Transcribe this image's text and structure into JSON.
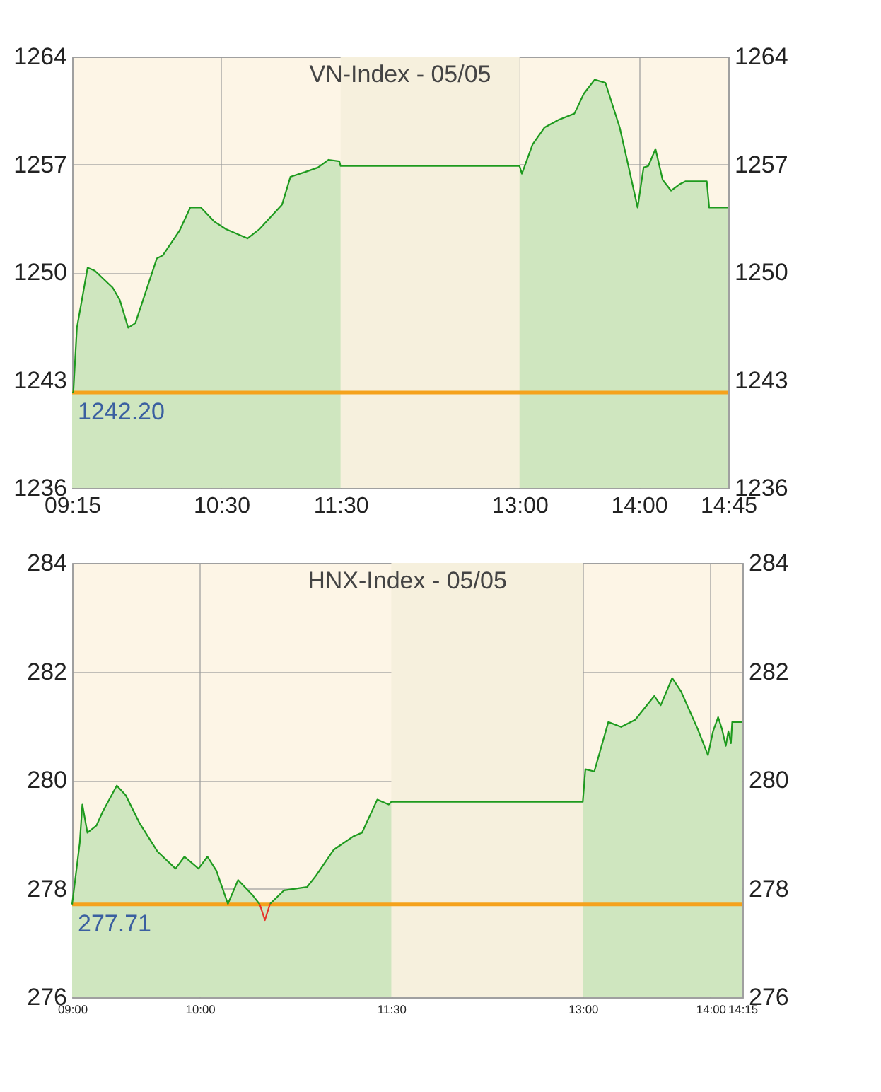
{
  "chart_data": [
    {
      "type": "area",
      "title": "VN-Index - 05/05",
      "xlim": [
        9.25,
        14.75
      ],
      "xticks": [
        {
          "value": 9.25,
          "label": "09:15"
        },
        {
          "value": 10.5,
          "label": "10:30"
        },
        {
          "value": 11.5,
          "label": "11:30"
        },
        {
          "value": 13,
          "label": "13:00"
        },
        {
          "value": 14,
          "label": "14:00"
        },
        {
          "value": 14.75,
          "label": "14:45"
        }
      ],
      "ylim": [
        1236,
        1264
      ],
      "yticks": [
        1236,
        1243,
        1250,
        1257,
        1264
      ],
      "y2lim": [
        1236,
        1264
      ],
      "y2ticks": [
        1236,
        1243,
        1250,
        1257,
        1264
      ],
      "grid": true,
      "bands": [
        {
          "axis": "x",
          "from": 11.5,
          "to": 13,
          "color": "#f6f0dd"
        }
      ],
      "ref_lines": [
        {
          "axis": "y",
          "value": 1242.2,
          "label": "1242.20",
          "color": "#f5a21c"
        }
      ],
      "series": [
        {
          "color": "#1e9a1e",
          "x": [
            9.25,
            9.26,
            9.29,
            9.38,
            9.44,
            9.59,
            9.65,
            9.72,
            9.78,
            9.96,
            10.01,
            10.15,
            10.24,
            10.33,
            10.44,
            10.54,
            10.72,
            10.82,
            11.01,
            11.08,
            11.2,
            11.31,
            11.4,
            11.49,
            11.5,
            13,
            13.02,
            13.11,
            13.21,
            13.33,
            13.46,
            13.54,
            13.63,
            13.72,
            13.84,
            13.91,
            13.99,
            14.04,
            14.08,
            14.14,
            14.2,
            14.27,
            14.34,
            14.39,
            14.57,
            14.59,
            14.75
          ],
          "values": [
            1242.2,
            1242.2,
            1246.4,
            1250.3,
            1250.1,
            1249.0,
            1248.2,
            1246.4,
            1246.7,
            1250.9,
            1251.1,
            1252.7,
            1254.2,
            1254.2,
            1253.3,
            1252.8,
            1252.2,
            1252.8,
            1254.4,
            1256.2,
            1256.5,
            1256.8,
            1257.3,
            1257.2,
            1256.9,
            1256.9,
            1256.4,
            1258.3,
            1259.4,
            1259.9,
            1260.3,
            1261.6,
            1262.5,
            1262.3,
            1259.4,
            1257.0,
            1254.2,
            1256.8,
            1256.9,
            1258.0,
            1256.0,
            1255.3,
            1255.7,
            1255.9,
            1255.9,
            1254.2,
            1254.2
          ]
        }
      ]
    },
    {
      "type": "area",
      "title": "HNX-Index - 05/05",
      "xlim": [
        9,
        14.25
      ],
      "xticks": [
        {
          "value": 9,
          "label": "09:00"
        },
        {
          "value": 10,
          "label": "10:00"
        },
        {
          "value": 11.5,
          "label": "11:30"
        },
        {
          "value": 13,
          "label": "13:00"
        },
        {
          "value": 14,
          "label": "14:00"
        },
        {
          "value": 14.25,
          "label": "14:15"
        }
      ],
      "ylim": [
        276,
        284
      ],
      "yticks": [
        276,
        278,
        280,
        282,
        284
      ],
      "y2lim": [
        276,
        284
      ],
      "y2ticks": [
        276,
        278,
        280,
        282,
        284
      ],
      "grid": true,
      "bands": [
        {
          "axis": "x",
          "from": 11.5,
          "to": 13,
          "color": "#f6f0dd"
        }
      ],
      "ref_lines": [
        {
          "axis": "y",
          "value": 277.71,
          "label": "277.71",
          "color": "#f5a21c"
        }
      ],
      "series": [
        {
          "color": "#1e9a1e",
          "x": [
            9,
            9.06,
            9.08,
            9.12,
            9.19,
            9.24,
            9.35,
            9.42,
            9.53,
            9.67,
            9.81,
            9.88,
            9.99,
            10.06,
            10.13,
            10.22,
            10.3,
            10.41,
            10.47,
            10.51,
            10.55,
            10.66,
            10.84,
            10.91,
            11.05,
            11.2,
            11.27,
            11.39,
            11.48,
            11.5,
            13,
            13.02,
            13.09,
            13.2,
            13.3,
            13.41,
            13.56,
            13.61,
            13.7,
            13.77,
            13.9,
            13.98,
            14.02,
            14.06,
            14.09,
            14.12,
            14.14,
            14.16,
            14.17,
            14.25
          ],
          "values": [
            277.71,
            278.85,
            279.55,
            279.03,
            279.16,
            279.42,
            279.9,
            279.72,
            279.2,
            278.68,
            278.37,
            278.59,
            278.37,
            278.59,
            278.33,
            277.72,
            278.16,
            277.89,
            277.71,
            null,
            277.72,
            277.97,
            278.03,
            278.24,
            278.72,
            278.96,
            279.03,
            279.64,
            279.55,
            279.6,
            279.6,
            280.2,
            280.16,
            281.07,
            280.98,
            281.11,
            281.55,
            281.38,
            281.88,
            281.63,
            280.94,
            280.46,
            280.9,
            281.16,
            280.94,
            280.63,
            280.9,
            280.68,
            281.07,
            281.07
          ]
        },
        {
          "type": "line",
          "color": "#e8322a",
          "x": [
            10.47,
            10.51,
            10.55
          ],
          "values": [
            277.71,
            277.42,
            277.72
          ]
        }
      ]
    }
  ]
}
